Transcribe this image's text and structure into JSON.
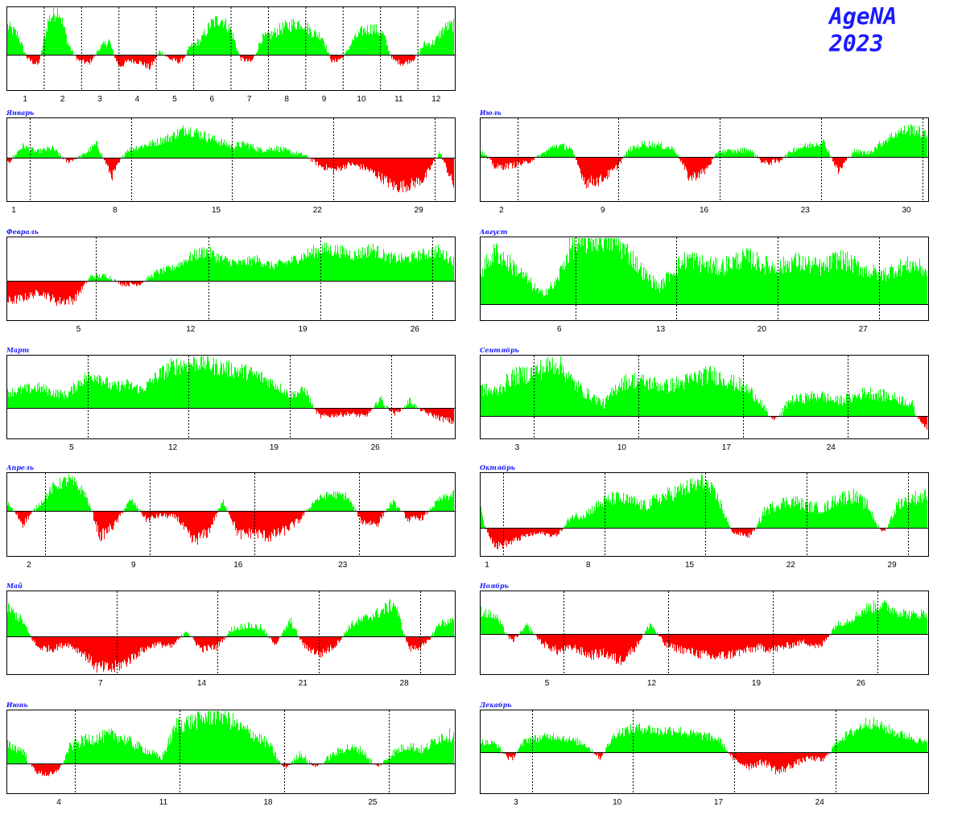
{
  "brand": {
    "name": "AgeNA",
    "year": "2023"
  },
  "colors": {
    "positive": "#00ff00",
    "negative": "#ff0000",
    "baseline": "#000000",
    "frame": "#000000",
    "title": "#1a1aff",
    "grid": "#000000"
  },
  "chart_data": [
    {
      "type": "bar",
      "id": "year",
      "title": "",
      "x_ticks": [
        "1",
        "2",
        "3",
        "4",
        "5",
        "6",
        "7",
        "8",
        "9",
        "10",
        "11",
        "12"
      ],
      "x_unit": "month",
      "y_zero": 0,
      "series_profile": [
        28,
        20,
        -6,
        -14,
        34,
        46,
        10,
        -8,
        -12,
        6,
        14,
        -16,
        -8,
        -10,
        -18,
        4,
        -6,
        -10,
        8,
        14,
        30,
        36,
        24,
        -6,
        -10,
        16,
        20,
        26,
        30,
        32,
        22,
        18,
        -10,
        -4,
        14,
        24,
        26,
        20,
        -8,
        -12,
        -6,
        10,
        12,
        26,
        30
      ]
    },
    {
      "type": "bar",
      "id": "jan",
      "title": "Январь",
      "x_ticks": [
        "1",
        "8",
        "15",
        "22",
        "29"
      ],
      "tick_days": [
        1,
        8,
        15,
        22,
        29
      ],
      "days": 31,
      "start_offset": 0,
      "series_profile": [
        -0.15,
        0.3,
        0.15,
        0.25,
        -0.1,
        0.05,
        0.35,
        -0.45,
        0.2,
        0.3,
        0.4,
        0.55,
        0.75,
        0.6,
        0.45,
        0.3,
        0.35,
        0.2,
        0.25,
        0.15,
        0.05,
        -0.2,
        -0.3,
        -0.15,
        -0.25,
        -0.45,
        -0.7,
        -0.65,
        -0.5,
        0.15,
        -0.7
      ]
    },
    {
      "type": "bar",
      "id": "feb",
      "title": "Февраль",
      "x_ticks": [
        "5",
        "12",
        "19",
        "26"
      ],
      "tick_days": [
        5,
        12,
        19,
        26
      ],
      "days": 28,
      "start_offset": 0,
      "series_profile": [
        -0.55,
        -0.45,
        -0.3,
        -0.55,
        -0.5,
        0.1,
        0.12,
        -0.1,
        -0.08,
        0.2,
        0.3,
        0.55,
        0.7,
        0.5,
        0.4,
        0.5,
        0.35,
        0.45,
        0.6,
        0.75,
        0.7,
        0.6,
        0.75,
        0.55,
        0.5,
        0.6,
        0.7,
        0.45
      ]
    },
    {
      "type": "bar",
      "id": "mar",
      "title": "Март",
      "x_ticks": [
        "5",
        "12",
        "19",
        "26"
      ],
      "tick_days": [
        5,
        12,
        19,
        26
      ],
      "days": 31,
      "start_offset": 0,
      "series_profile": [
        0.3,
        0.35,
        0.4,
        0.3,
        0.25,
        0.55,
        0.65,
        0.4,
        0.45,
        0.35,
        0.6,
        0.8,
        0.85,
        0.9,
        0.8,
        0.75,
        0.7,
        0.6,
        0.45,
        0.25,
        0.35,
        -0.3,
        -0.25,
        -0.2,
        -0.3,
        0.2,
        -0.2,
        0.15,
        -0.15,
        -0.35,
        -0.5
      ]
    },
    {
      "type": "bar",
      "id": "apr",
      "title": "Апрель",
      "x_ticks": [
        "2",
        "9",
        "16",
        "23"
      ],
      "tick_days": [
        2,
        9,
        16,
        23
      ],
      "days": 30,
      "start_offset": 0,
      "series_profile": [
        0.2,
        -0.3,
        0.15,
        0.65,
        0.85,
        0.5,
        -0.6,
        -0.3,
        0.3,
        -0.2,
        -0.1,
        -0.15,
        -0.7,
        -0.5,
        0.25,
        -0.55,
        -0.5,
        -0.6,
        -0.45,
        -0.2,
        0.3,
        0.45,
        0.4,
        -0.25,
        -0.3,
        0.25,
        -0.2,
        -0.15,
        0.3,
        0.45
      ]
    },
    {
      "type": "bar",
      "id": "may",
      "title": "Май",
      "x_ticks": [
        "7",
        "14",
        "21",
        "28"
      ],
      "tick_days": [
        7,
        14,
        21,
        28
      ],
      "days": 31,
      "start_offset": 0,
      "series_profile": [
        0.65,
        0.35,
        -0.3,
        -0.35,
        -0.2,
        -0.45,
        -0.85,
        -0.9,
        -0.7,
        -0.4,
        -0.2,
        -0.3,
        0.15,
        -0.35,
        -0.3,
        0.15,
        0.25,
        0.2,
        -0.2,
        0.35,
        -0.3,
        -0.5,
        -0.25,
        0.25,
        0.4,
        0.55,
        0.75,
        -0.35,
        -0.25,
        0.3,
        0.35
      ]
    },
    {
      "type": "bar",
      "id": "jun",
      "title": "Июнь",
      "x_ticks": [
        "4",
        "11",
        "18",
        "25"
      ],
      "tick_days": [
        4,
        11,
        18,
        25
      ],
      "days": 30,
      "start_offset": 0,
      "series_profile": [
        0.35,
        0.25,
        -0.35,
        -0.4,
        0.3,
        0.45,
        0.5,
        0.55,
        0.4,
        0.25,
        0.1,
        0.75,
        0.8,
        0.9,
        0.95,
        0.7,
        0.55,
        0.35,
        -0.15,
        0.2,
        -0.1,
        0.15,
        0.3,
        0.25,
        -0.1,
        0.2,
        0.35,
        0.25,
        0.5,
        0.55
      ]
    },
    {
      "type": "bar",
      "id": "jul",
      "title": "Июль",
      "x_ticks": [
        "2",
        "9",
        "16",
        "23",
        "30"
      ],
      "tick_days": [
        2,
        9,
        16,
        23,
        30
      ],
      "days": 31,
      "start_offset": 0,
      "series_profile": [
        0.15,
        -0.25,
        -0.2,
        -0.15,
        0.05,
        0.3,
        0.25,
        -0.6,
        -0.55,
        -0.3,
        0.2,
        0.35,
        0.3,
        0.2,
        -0.5,
        -0.35,
        0.15,
        0.15,
        0.2,
        -0.15,
        -0.1,
        0.2,
        0.3,
        0.4,
        -0.35,
        0.15,
        0.1,
        0.4,
        0.65,
        0.75,
        0.55
      ]
    },
    {
      "type": "bar",
      "id": "aug",
      "title": "Август",
      "x_ticks": [
        "6",
        "13",
        "20",
        "27"
      ],
      "tick_days": [
        6,
        13,
        20,
        27
      ],
      "days": 31,
      "start_offset": 0,
      "series_profile": [
        0.5,
        0.8,
        0.6,
        0.4,
        0.15,
        0.3,
        0.85,
        0.95,
        1.0,
        0.95,
        0.75,
        0.45,
        0.25,
        0.55,
        0.7,
        0.6,
        0.55,
        0.65,
        0.7,
        0.6,
        0.55,
        0.65,
        0.6,
        0.55,
        0.7,
        0.6,
        0.5,
        0.45,
        0.55,
        0.6,
        0.5
      ]
    },
    {
      "type": "bar",
      "id": "sep",
      "title": "Сентябрь",
      "x_ticks": [
        "3",
        "10",
        "17",
        "24"
      ],
      "tick_days": [
        3,
        10,
        17,
        24
      ],
      "days": 30,
      "start_offset": 0,
      "series_profile": [
        0.45,
        0.4,
        0.65,
        0.7,
        0.8,
        0.9,
        0.55,
        0.35,
        0.2,
        0.55,
        0.6,
        0.55,
        0.5,
        0.55,
        0.65,
        0.7,
        0.6,
        0.5,
        0.3,
        -0.15,
        0.25,
        0.3,
        0.35,
        0.25,
        0.3,
        0.4,
        0.35,
        0.3,
        0.2,
        -0.6
      ]
    },
    {
      "type": "bar",
      "id": "oct",
      "title": "Октябрь",
      "x_ticks": [
        "1",
        "8",
        "15",
        "22",
        "29"
      ],
      "tick_days": [
        1,
        8,
        15,
        22,
        29
      ],
      "days": 31,
      "start_offset": 0,
      "series_profile": [
        0.3,
        -0.7,
        -0.55,
        -0.3,
        -0.2,
        -0.3,
        0.2,
        0.25,
        0.45,
        0.55,
        0.5,
        0.4,
        0.55,
        0.65,
        0.75,
        0.85,
        0.5,
        -0.2,
        -0.3,
        0.3,
        0.45,
        0.5,
        0.4,
        0.35,
        0.55,
        0.6,
        0.4,
        -0.15,
        0.45,
        0.55,
        0.6
      ]
    },
    {
      "type": "bar",
      "id": "nov",
      "title": "Ноябрь",
      "x_ticks": [
        "5",
        "12",
        "19",
        "26"
      ],
      "tick_days": [
        5,
        12,
        19,
        26
      ],
      "days": 30,
      "start_offset": 0,
      "series_profile": [
        0.55,
        0.4,
        -0.2,
        0.2,
        -0.25,
        -0.45,
        -0.35,
        -0.55,
        -0.5,
        -0.7,
        -0.35,
        0.25,
        -0.3,
        -0.4,
        -0.5,
        -0.6,
        -0.55,
        -0.45,
        -0.35,
        -0.4,
        -0.3,
        -0.2,
        -0.35,
        0.2,
        0.35,
        0.6,
        0.7,
        0.55,
        0.45,
        0.5
      ]
    },
    {
      "type": "bar",
      "id": "dec",
      "title": "Декабрь",
      "x_ticks": [
        "3",
        "10",
        "17",
        "24"
      ],
      "tick_days": [
        3,
        10,
        17,
        24
      ],
      "days": 31,
      "start_offset": 0,
      "series_profile": [
        0.25,
        0.2,
        -0.2,
        0.3,
        0.35,
        0.4,
        0.3,
        0.2,
        -0.15,
        0.45,
        0.55,
        0.6,
        0.5,
        0.55,
        0.45,
        0.4,
        0.3,
        -0.2,
        -0.35,
        -0.25,
        -0.5,
        -0.3,
        -0.15,
        -0.2,
        0.3,
        0.5,
        0.75,
        0.6,
        0.45,
        0.35,
        0.2
      ]
    }
  ]
}
